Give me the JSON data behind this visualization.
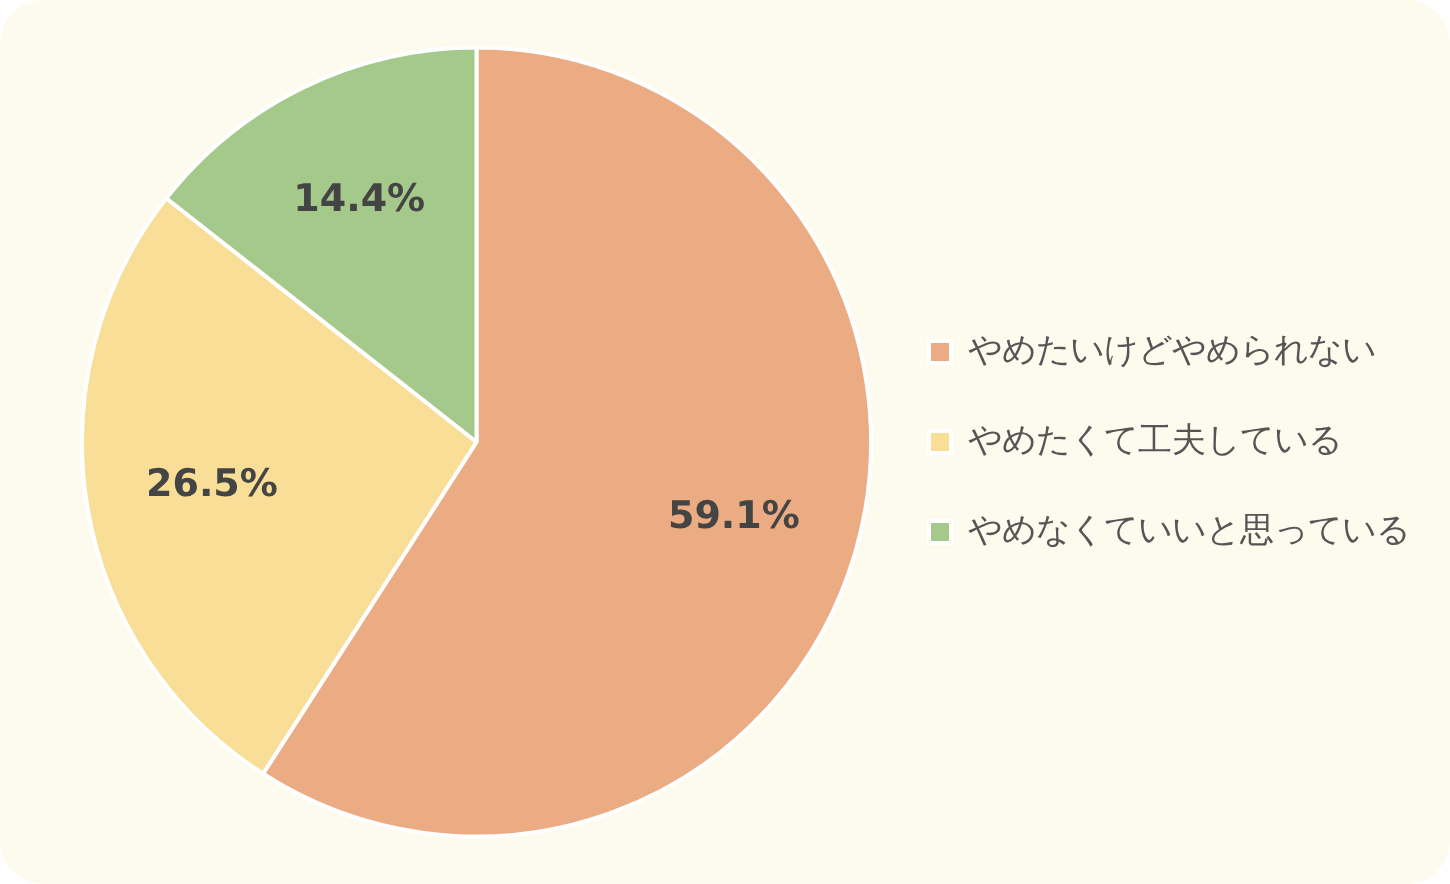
{
  "chart_data": {
    "type": "pie",
    "categories": [
      "やめたいけどやめられない",
      "やめたくて工夫している",
      "やめなくていいと思っている"
    ],
    "values": [
      59.1,
      26.5,
      14.4
    ],
    "colors": [
      "#ebab83",
      "#f8de96",
      "#a5c98b"
    ],
    "value_labels": [
      "59.1%",
      "26.5%",
      "14.4%"
    ],
    "legend": "right"
  }
}
